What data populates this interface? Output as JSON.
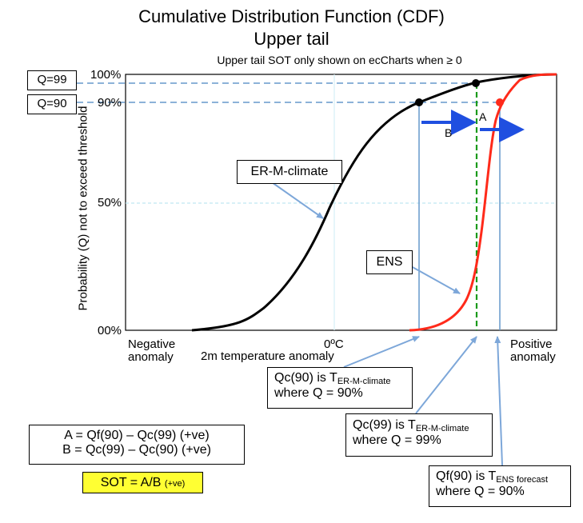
{
  "title_line1": "Cumulative Distribution Function (CDF)",
  "title_line2": "Upper tail",
  "subtitle": "Upper tail SOT only shown on ecCharts when ≥ 0",
  "q_boxes": {
    "q99": "Q=99",
    "q90": "Q=90"
  },
  "y_ticks": {
    "t100": "100%",
    "t90": "90%",
    "t50": "50%",
    "t00": "00%"
  },
  "y_axis_label": "Probability (Q) not to exceed threshold",
  "x_labels": {
    "left_line1": "Negative",
    "left_line2": "anomaly",
    "center": "0ºC",
    "center_sub": "2m temperature anomaly",
    "right_line1": "Positive",
    "right_line2": "anomaly"
  },
  "curve_labels": {
    "climate": "ER-M-climate",
    "ens": "ENS"
  },
  "arrow_labels": {
    "a": "A",
    "b": "B"
  },
  "callouts": {
    "qc90": {
      "prefix": "Qc(90) is T",
      "subscript": "ER-M-climate",
      "line2": "where Q = 90%"
    },
    "qc99": {
      "prefix": "Qc(99) is T",
      "subscript": "ER-M-climate",
      "line2": "where Q = 99%"
    },
    "qf90": {
      "prefix": "Qf(90) is T",
      "subscript": "ENS forecast",
      "line2": "where Q = 90%"
    }
  },
  "formula": {
    "line1": "A = Qf(90) – Qc(99) (+ve)",
    "line2": "B = Qc(99) – Qc(90) (+ve)",
    "sot_main": "SOT = A/B",
    "sot_suffix": "(+ve)"
  },
  "colors": {
    "climate_curve": "#000000",
    "ens_curve": "#ff2a1a",
    "dashed_lines": "#6699cc",
    "arrows": "#1f4fe0",
    "pointer": "#7da7d9",
    "qc99_vertical": "#1a9a1a",
    "sot_bg": "#ffff33"
  }
}
